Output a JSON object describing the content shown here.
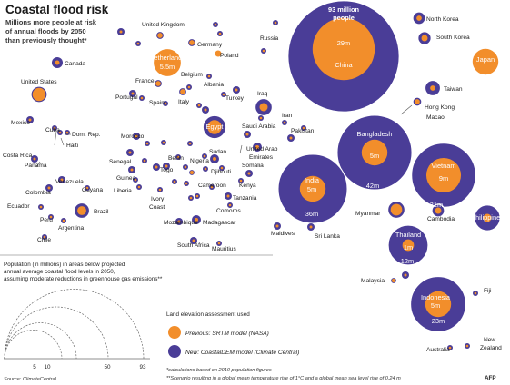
{
  "header": {
    "title": "Coastal flood risk",
    "subtitle_lines": [
      "Millions more people at risk",
      "of annual floods by 2050",
      "than previously thought*"
    ]
  },
  "colors": {
    "new": "#4a3d97",
    "old": "#f28e2b",
    "ring": "#ffffff",
    "rule": "#9a9a9a"
  },
  "chart_data": {
    "type": "bubble",
    "title": "Coastal flood risk",
    "subtitle": "Millions more people at risk of annual floods by 2050 than previously thought*",
    "size_unit": "Population (in millions) in areas below projected annual average coastal flood levels in 2050, assuming moderate reductions in greenhouse gas emissions**",
    "series": [
      {
        "name": "Previous: SRTM model (NASA)",
        "key": "old"
      },
      {
        "name": "New: CoastalDEM model (Climate Central)",
        "key": "new"
      }
    ],
    "countries": [
      {
        "name": "China",
        "new": 93,
        "old": 29,
        "new_label": "93 million people",
        "old_label": "29m"
      },
      {
        "name": "Bangladesh",
        "new": 42,
        "old": 5,
        "new_label": "42m",
        "old_label": "5m"
      },
      {
        "name": "India",
        "new": 36,
        "old": 5,
        "new_label": "36m",
        "old_label": "5m"
      },
      {
        "name": "Vietnam",
        "new": 31,
        "old": 9,
        "new_label": "31m",
        "old_label": "9m"
      },
      {
        "name": "Indonesia",
        "new": 23,
        "old": 5,
        "new_label": "23m",
        "old_label": "5m"
      },
      {
        "name": "Thailand",
        "new": 12,
        "old": 1,
        "new_label": "12m",
        "old_label": "1m"
      },
      {
        "name": "Netherlands",
        "new": 5.5,
        "old": 5.5,
        "old_label": "5.5m"
      },
      {
        "name": "Japan",
        "new": 5,
        "old": 5
      },
      {
        "name": "Philippines",
        "new": 5,
        "old": 0.5
      },
      {
        "name": "Egypt",
        "new": 4,
        "old": 1.5
      },
      {
        "name": "Myanmar",
        "new": 2.2,
        "old": 1
      },
      {
        "name": "Iraq",
        "new": 2.2,
        "old": 0.5
      },
      {
        "name": "Taiwan",
        "new": 1.8,
        "old": 0.2
      },
      {
        "name": "Brazil",
        "new": 1.8,
        "old": 0.6
      },
      {
        "name": "United States",
        "new": 2,
        "old": 1.3
      },
      {
        "name": "North Korea",
        "new": 1.2,
        "old": 0.2
      },
      {
        "name": "South Korea",
        "new": 1.3,
        "old": 0.3
      },
      {
        "name": "Cambodia",
        "new": 1.2,
        "old": 0.3
      },
      {
        "name": "United Kingdom",
        "new": 0.5,
        "old": 0.2
      },
      {
        "name": "Germany",
        "new": 0.5,
        "old": 0.2
      },
      {
        "name": "France",
        "new": 0.5,
        "old": 0.2
      },
      {
        "name": "Italy",
        "new": 0.5,
        "old": 0.2
      },
      {
        "name": "Poland",
        "new": 0.3,
        "old": 0.3
      },
      {
        "name": "Hong Kong",
        "new": 0.6,
        "old": 0.2
      },
      {
        "name": "Malaysia",
        "new": 0.3,
        "old": 0.1
      },
      {
        "name": "Nigeria",
        "new": 0.3,
        "old": 0.1
      }
    ],
    "scale": {
      "type": "sqrt",
      "legend_values": [
        5,
        10,
        50,
        93
      ]
    },
    "legend": {
      "heading": "Land elevation assessment used",
      "placement": "bottom-center"
    }
  },
  "labels": {
    "china": "China",
    "china_top1": "93 million",
    "china_top2": "people",
    "china_old": "29m",
    "bangladesh": "Bangladesh",
    "bangladesh_old": "5m",
    "bangladesh_new": "42m",
    "india1": "India",
    "india2": "5m",
    "india_new": "36m",
    "vietnam": "Vietnam",
    "vietnam_old": "9m",
    "vietnam_new": "31m",
    "indonesia1": "Indonesia",
    "indonesia2": "5m",
    "indonesia_new": "23m",
    "thailand": "Thailand",
    "thailand_old": "1m",
    "thailand_new": "12m",
    "netherlands": "Netherlands",
    "netherlands_val": "5.5m",
    "egypt": "Egypt",
    "philippines": "Philippines",
    "japan": "Japan",
    "north_korea": "North Korea",
    "south_korea": "South Korea",
    "taiwan": "Taiwan",
    "hong_kong": "Hong Kong",
    "macao": "Macao",
    "russia": "Russia",
    "uk": "United Kingdom",
    "germany": "Germany",
    "poland": "Poland",
    "france": "France",
    "belgium": "Belgium",
    "portugal": "Portugal",
    "spain": "Spain",
    "italy": "Italy",
    "albania": "Albania",
    "turkey": "Turkey",
    "iraq": "Iraq",
    "iran": "Iran",
    "saudi": "Saudi Arabia",
    "uae1": "United Arab",
    "uae2": "Emirates",
    "pakistan": "Pakistan",
    "sudan": "Sudan",
    "djibouti": "Djibouti",
    "somalia": "Somalia",
    "kenya": "Kenya",
    "tanzania": "Tanzania",
    "comoros": "Comoros",
    "madagascar": "Madagascar",
    "mozambique": "Mozambique",
    "mauritius": "Mauritius",
    "south_africa": "South Africa",
    "maldives": "Maldives",
    "sri_lanka": "Sri Lanka",
    "myanmar": "Myanmar",
    "cambodia": "Cambodia",
    "malaysia": "Malaysia",
    "fiji": "Fiji",
    "australia": "Australia",
    "new_zealand1": "New",
    "new_zealand2": "Zealand",
    "canada": "Canada",
    "usa": "United States",
    "mexico": "Mexico",
    "cuba": "Cuba",
    "dom_rep": "Dom. Rep.",
    "haiti": "Haiti",
    "costa_rica": "Costa Rica",
    "panama": "Panama",
    "venezuela": "Venezuela",
    "colombia": "Colombia",
    "guyana": "Guyana",
    "ecuador": "Ecuador",
    "brazil": "Brazil",
    "peru": "Peru",
    "argentina": "Argentina",
    "chile": "Chile",
    "morocco": "Morocco",
    "senegal": "Senegal",
    "guinea": "Guinea",
    "liberia": "Liberia",
    "ivory1": "Ivory",
    "ivory2": "Coast",
    "togo": "Togo",
    "benin": "Benin",
    "nigeria": "Nigeria",
    "cameroon": "Cameroon"
  },
  "notes": {
    "population_lines": [
      "Population (in millions) in areas below projected",
      "annual average coastal flood levels in 2050,",
      "assuming moderate reductions in greenhouse gas emissions**"
    ],
    "legend_heading": "Land elevation assessment used",
    "legend_old": "Previous: SRTM model (NASA)",
    "legend_new": "New: CoastalDEM model (Climate Central)",
    "footnote1": "*calculations based on 2010 population figures",
    "footnote2": "**Scenario resulting in a global mean temperature rise of 1°C and a global mean sea level rise of 0.24 m",
    "scale_5": "5",
    "scale_10": "10",
    "scale_50": "50",
    "scale_93": "93",
    "source": "Source: ClimateCentral",
    "credit": "AFP"
  }
}
